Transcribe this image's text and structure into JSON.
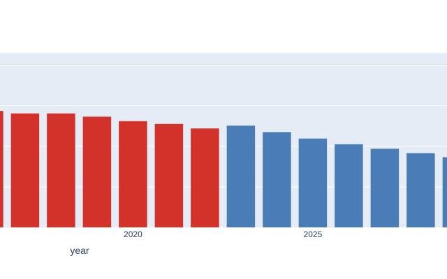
{
  "chart_data": {
    "type": "bar",
    "x": [
      2016,
      2017,
      2018,
      2019,
      2020,
      2021,
      2022,
      2023,
      2024,
      2025,
      2026,
      2027,
      2028,
      2029
    ],
    "values": [
      2.87,
      2.81,
      2.81,
      2.73,
      2.62,
      2.55,
      2.44,
      2.51,
      2.35,
      2.19,
      2.05,
      1.94,
      1.83,
      1.73
    ],
    "bar_colors": [
      "#d3322b",
      "#d3322b",
      "#d3322b",
      "#d3322b",
      "#d3322b",
      "#d3322b",
      "#d3322b",
      "#4a7db5",
      "#4a7db5",
      "#4a7db5",
      "#4a7db5",
      "#4a7db5",
      "#4a7db5",
      "#4a7db5"
    ],
    "xlabel": "year",
    "ylabel": "",
    "title": "",
    "xticks": [
      "2020",
      "2025"
    ],
    "xtick_values": [
      2020,
      2025
    ],
    "ylim": [
      0,
      4.3
    ],
    "yaxis_tick_values": [
      1,
      2,
      3,
      4
    ],
    "grid": true,
    "plot_bgcolor": "#e5ecf6",
    "grid_color": "#ffffff"
  }
}
